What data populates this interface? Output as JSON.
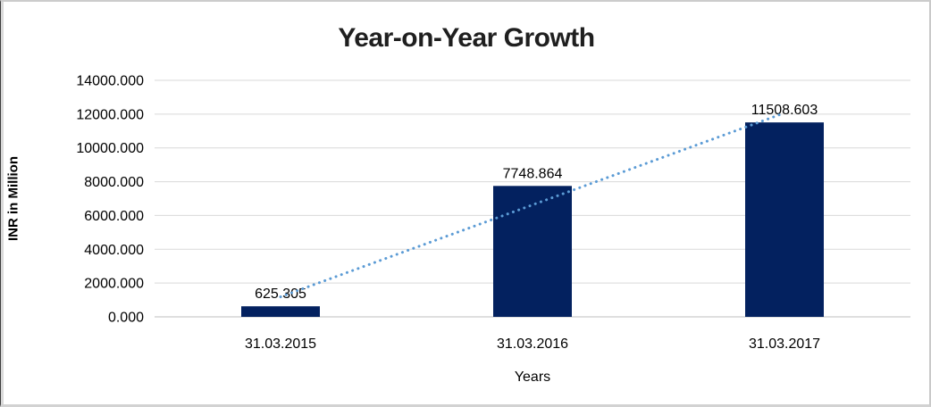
{
  "frame": {
    "background": "#FFFFFF"
  },
  "chart_data": {
    "type": "bar",
    "title": "Year-on-Year Growth",
    "xlabel": "Years",
    "ylabel": "INR in Million",
    "categories": [
      "31.03.2015",
      "31.03.2016",
      "31.03.2017"
    ],
    "values": [
      625.305,
      7748.864,
      11508.603
    ],
    "data_labels": [
      "625.305",
      "7748.864",
      "11508.603"
    ],
    "y_ticks": [
      {
        "value": 14000,
        "label": "14000.000"
      },
      {
        "value": 12000,
        "label": "12000.000"
      },
      {
        "value": 10000,
        "label": "10000.000"
      },
      {
        "value": 8000,
        "label": "8000.000"
      },
      {
        "value": 6000,
        "label": "6000.000"
      },
      {
        "value": 4000,
        "label": "4000.000"
      },
      {
        "value": 2000,
        "label": "2000.000"
      },
      {
        "value": 0,
        "label": "0.000"
      }
    ],
    "ylim": [
      0,
      14000
    ],
    "grid": true,
    "legend": "none",
    "trendline": {
      "type": "linear",
      "style": "dotted"
    },
    "colors": {
      "bar": "#03215F",
      "trendline": "#5B9BD5",
      "gridline": "#D9D9D9",
      "axis_line": "#BFBFBF",
      "label_text": "#000000",
      "title_text": "#1F1F1F"
    }
  }
}
